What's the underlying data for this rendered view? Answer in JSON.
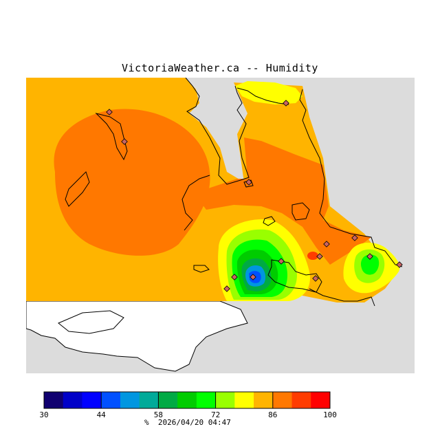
{
  "title": "VictoriaWeather.ca -- Humidity",
  "colorbar": {
    "unit": "%",
    "timestamp": "2026/04/20 04:47",
    "ticks": [
      {
        "value": 30,
        "label": "30"
      },
      {
        "value": 44,
        "label": "44"
      },
      {
        "value": 58,
        "label": "58"
      },
      {
        "value": 72,
        "label": "72"
      },
      {
        "value": 86,
        "label": "86"
      },
      {
        "value": 100,
        "label": "100"
      }
    ],
    "range": [
      30,
      100
    ],
    "colors": [
      "#100070",
      "#0000c8",
      "#0000ff",
      "#0050ff",
      "#0096e0",
      "#00aa99",
      "#00aa44",
      "#00cc00",
      "#00ff00",
      "#99ff00",
      "#ffff00",
      "#ffb400",
      "#ff7800",
      "#ff3c00",
      "#ff0000"
    ]
  },
  "map_colors": {
    "outside": "#dcdcdc",
    "land_water": "#ffffff",
    "coast": "#000000",
    "station": "#c86464"
  }
}
